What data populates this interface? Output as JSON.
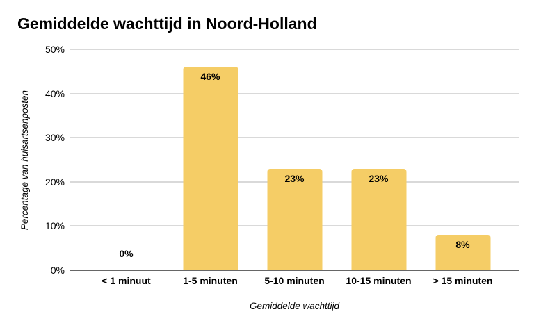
{
  "chart_data": {
    "type": "bar",
    "title": "Gemiddelde wachttijd in Noord-Holland",
    "categories": [
      "< 1 minuut",
      "1-5 minuten",
      "5-10 minuten",
      "10-15 minuten",
      "> 15 minuten"
    ],
    "values": [
      0,
      46,
      23,
      23,
      8
    ],
    "value_labels": [
      "0%",
      "46%",
      "23%",
      "23%",
      "8%"
    ],
    "xlabel": "Gemiddelde wachttijd",
    "ylabel": "Percentage van huisartsenposten",
    "ylim": [
      0,
      50
    ],
    "ytick_step": 10,
    "yticks": [
      "0%",
      "10%",
      "20%",
      "30%",
      "40%",
      "50%"
    ],
    "grid": true,
    "legend": "none",
    "colors": {
      "bar": "#F5CD66",
      "gridline": "#D9D9D9",
      "axis_line": "#666666",
      "text": "#000000",
      "background": "#FFFFFF"
    }
  }
}
